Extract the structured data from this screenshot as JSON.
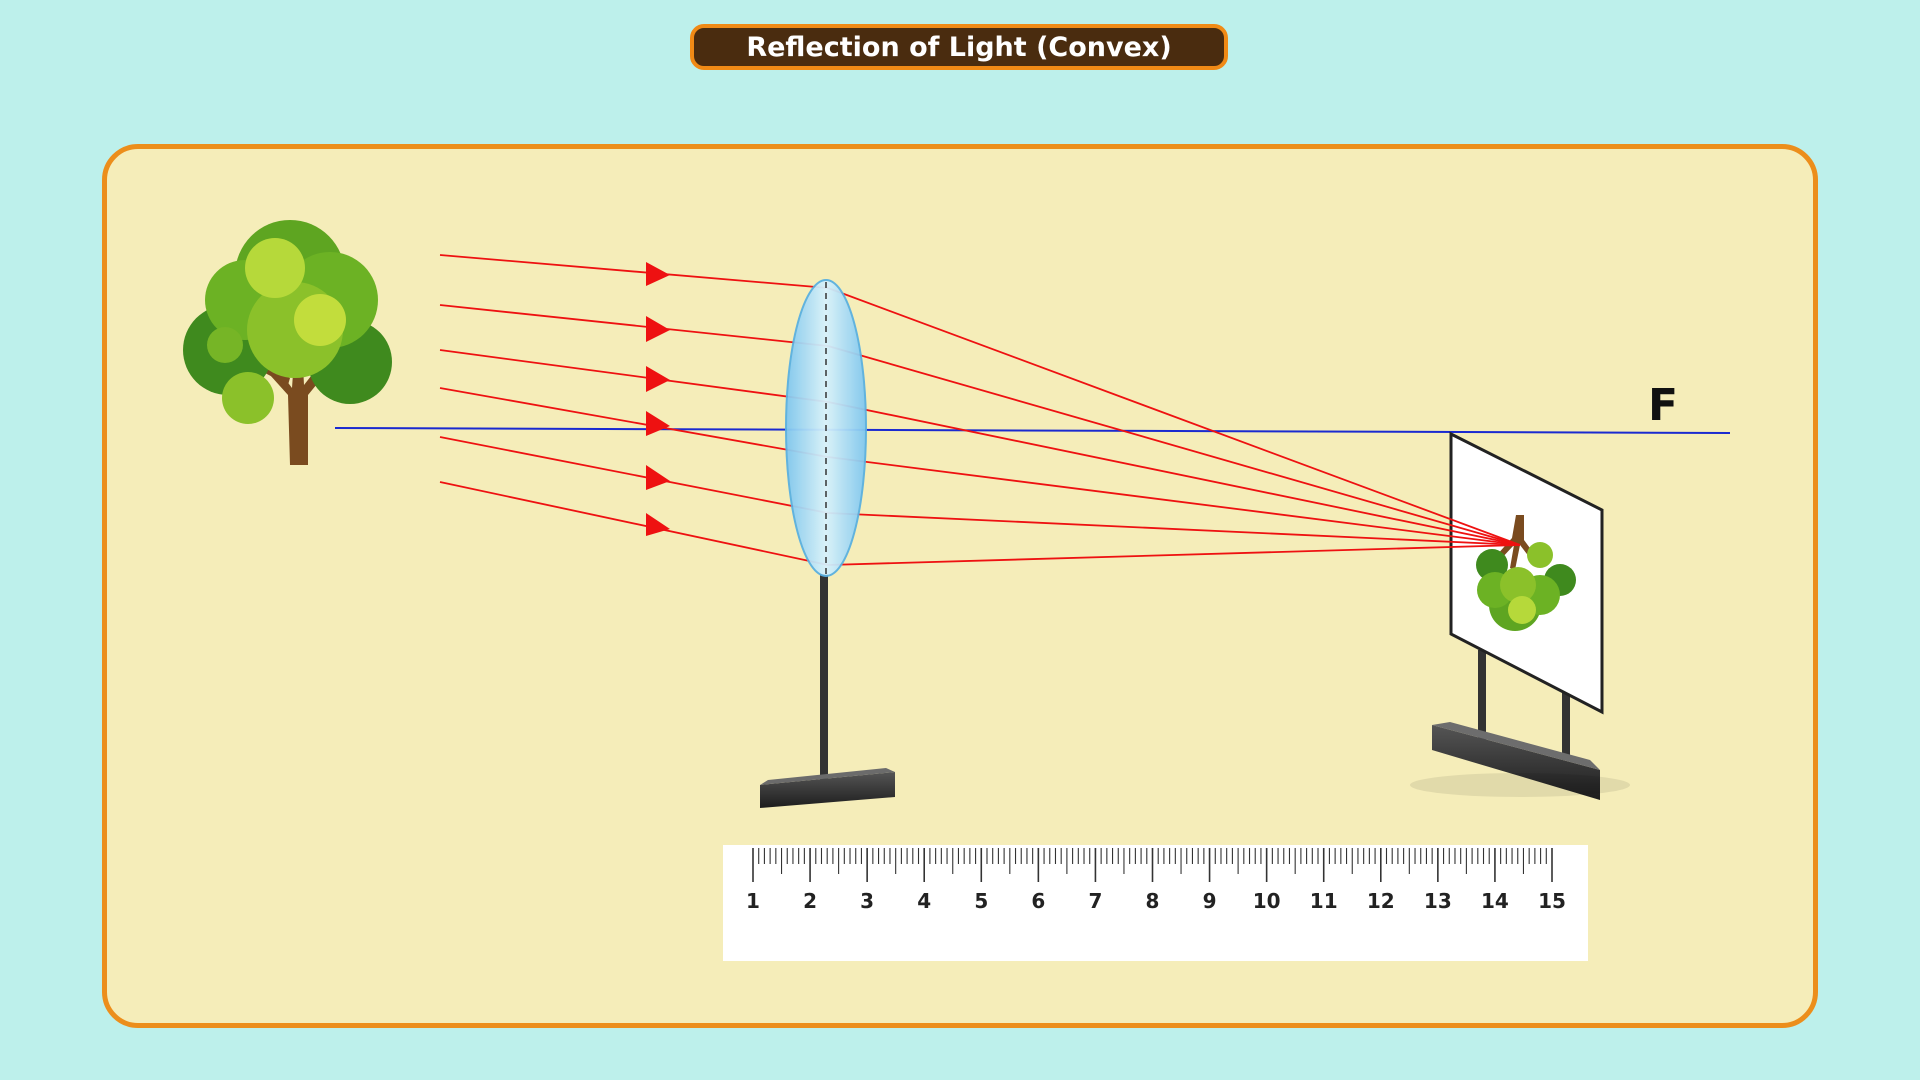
{
  "title": "Reflection of Light (Convex)",
  "focal_label": "F",
  "ruler": {
    "labels": [
      "1",
      "2",
      "3",
      "4",
      "5",
      "6",
      "7",
      "8",
      "9",
      "10",
      "11",
      "12",
      "13",
      "14",
      "15"
    ]
  },
  "colors": {
    "ray": "#ee1111",
    "axis": "#1a2ad0",
    "background": "#bdf0eb",
    "panel": "#f5edb9",
    "border": "#ec8e1b",
    "banner": "#4a2c0f"
  },
  "icons": {
    "object": "tree-icon",
    "image": "inverted-tree-icon"
  }
}
